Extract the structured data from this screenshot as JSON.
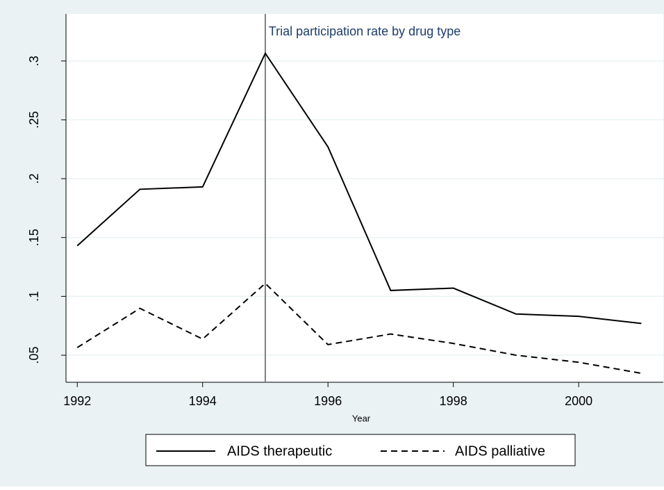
{
  "chart_data": {
    "type": "line",
    "title": "Trial participation rate by drug type",
    "x_label": "Year",
    "x": [
      1992,
      1993,
      1994,
      1995,
      1996,
      1997,
      1998,
      1999,
      2000,
      2001
    ],
    "series": [
      {
        "name": "AIDS therapeutic",
        "color": "#000000",
        "dash": "solid",
        "values": [
          0.143,
          0.191,
          0.193,
          0.3065,
          0.227,
          0.105,
          0.107,
          0.085,
          0.083,
          0.077
        ]
      },
      {
        "name": "AIDS palliative",
        "color": "#000000",
        "dash": "dashed",
        "values": [
          0.0565,
          0.0898,
          0.0637,
          0.111,
          0.059,
          0.068,
          0.06,
          0.05,
          0.044,
          0.0346
        ]
      }
    ],
    "xlim": [
      1991.82,
      2001.35
    ],
    "ylim": [
      0.027,
      0.34
    ],
    "xticks": [
      1992,
      1994,
      1996,
      1998,
      2000
    ],
    "yticks": [
      {
        "value": 0.05,
        "label": ".05"
      },
      {
        "value": 0.1,
        "label": ".1"
      },
      {
        "value": 0.15,
        "label": ".15"
      },
      {
        "value": 0.2,
        "label": ".2"
      },
      {
        "value": 0.25,
        "label": ".25"
      },
      {
        "value": 0.3,
        "label": ".3"
      }
    ],
    "grid": true,
    "xline": 1995,
    "xline_color": "#7f7f7f",
    "legend": "bottom"
  }
}
